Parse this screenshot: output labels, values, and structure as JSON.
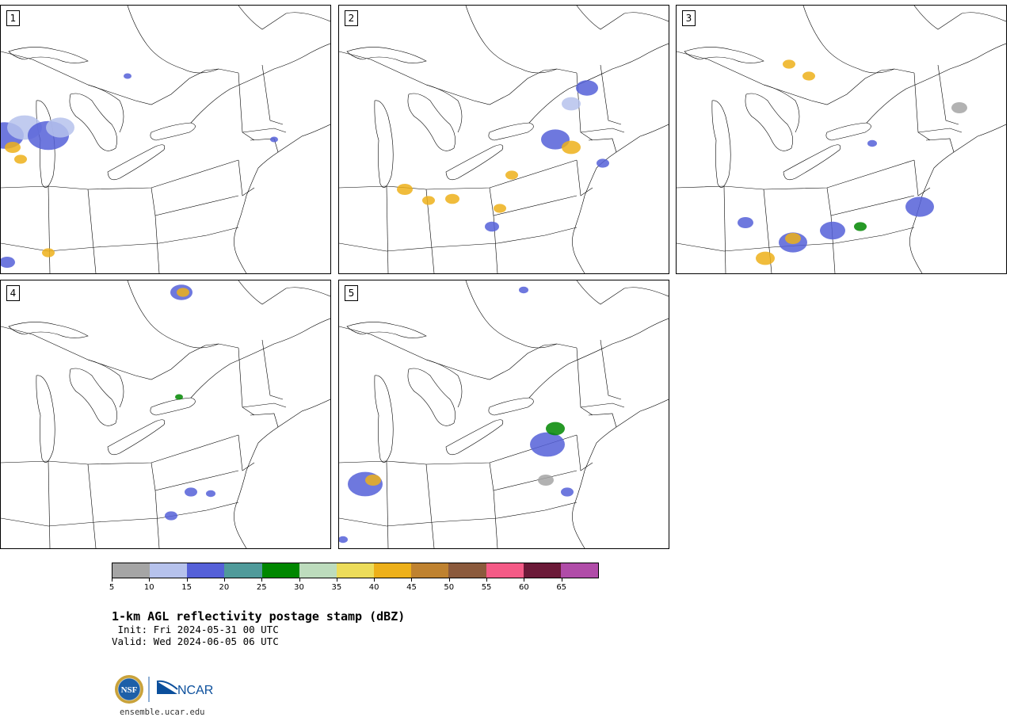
{
  "panels": [
    {
      "label": "1"
    },
    {
      "label": "2"
    },
    {
      "label": "3"
    },
    {
      "label": "4"
    },
    {
      "label": "5"
    }
  ],
  "colorbar": {
    "colors": [
      "#a5a5a5",
      "#b6c2ec",
      "#5560d8",
      "#4f9a9a",
      "#008700",
      "#bddcbd",
      "#ecdc5a",
      "#edb01a",
      "#bf8230",
      "#8b5a3c",
      "#f45a86",
      "#6b1a38",
      "#b04ca8"
    ],
    "ticks": [
      "5",
      "10",
      "15",
      "20",
      "25",
      "30",
      "35",
      "40",
      "45",
      "50",
      "55",
      "60",
      "65"
    ]
  },
  "title": "1-km AGL reflectivity postage stamp (dBZ)",
  "init": " Init: Fri 2024-05-31 00 UTC",
  "valid": "Valid: Wed 2024-06-05 06 UTC",
  "logos": {
    "nsf": "NSF",
    "ncar": "NCAR"
  },
  "site": "ensemble.ucar.edu"
}
